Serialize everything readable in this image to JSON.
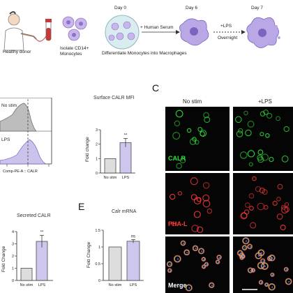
{
  "workflow": {
    "steps": {
      "donor": "Healthy donor",
      "isolate": "Isolate CD14+\nMonocytes",
      "serum": "+ Human Serum",
      "differentiate": "Differentiate Monocytes into Macrophages",
      "lps": "+LPS",
      "overnight": "Overnight"
    },
    "days": [
      "Day 0",
      "Day 6",
      "Day 7"
    ]
  },
  "panel_labels": {
    "c": "C",
    "e": "E"
  },
  "histogram": {
    "labels": [
      "No stim",
      "LPS"
    ],
    "xlabel": "Comp-PE-A :: CALR",
    "colors": {
      "nostim": "#bdbdbd",
      "lps": "#cbc3ec",
      "line": "#555555"
    }
  },
  "microscopy": {
    "columns": [
      "No stim",
      "+LPS"
    ],
    "rows": [
      "CALR",
      "PHA-L",
      "Merge"
    ],
    "colors": {
      "calr": "#2fe03a",
      "phal": "#ff3a3a",
      "merge": "#ffffff"
    }
  },
  "chart_data": [
    {
      "type": "bar",
      "title": "Surface CALR MFI",
      "ylabel": "Fold change",
      "categories": [
        "No stim",
        "LPS"
      ],
      "values": [
        1.0,
        2.1
      ],
      "errors": [
        0,
        0.3
      ],
      "ylim": [
        0,
        3
      ],
      "yticks": [
        0,
        1,
        2,
        3
      ],
      "annotation": "**",
      "colors": [
        "#dddddd",
        "#cfc6ee"
      ]
    },
    {
      "type": "bar",
      "title": "Secreted CALR",
      "ylabel": "Fold Change",
      "categories": [
        "No stim",
        "LPS"
      ],
      "values": [
        1.0,
        3.2
      ],
      "errors": [
        0,
        0.5
      ],
      "ylim": [
        0,
        4
      ],
      "yticks": [
        0,
        1,
        2,
        3,
        4
      ],
      "annotation": "**",
      "colors": [
        "#dddddd",
        "#cfc6ee"
      ]
    },
    {
      "type": "bar",
      "title": "Calr mRNA",
      "ylabel": "Fold Change",
      "categories": [
        "No stim",
        "LPS"
      ],
      "values": [
        1.0,
        1.17
      ],
      "errors": [
        0,
        0.05
      ],
      "ylim": [
        0,
        1.5
      ],
      "yticks": [
        0.0,
        0.5,
        1.0,
        1.5
      ],
      "annotation": "ns",
      "colors": [
        "#dddddd",
        "#cfc6ee"
      ]
    }
  ]
}
